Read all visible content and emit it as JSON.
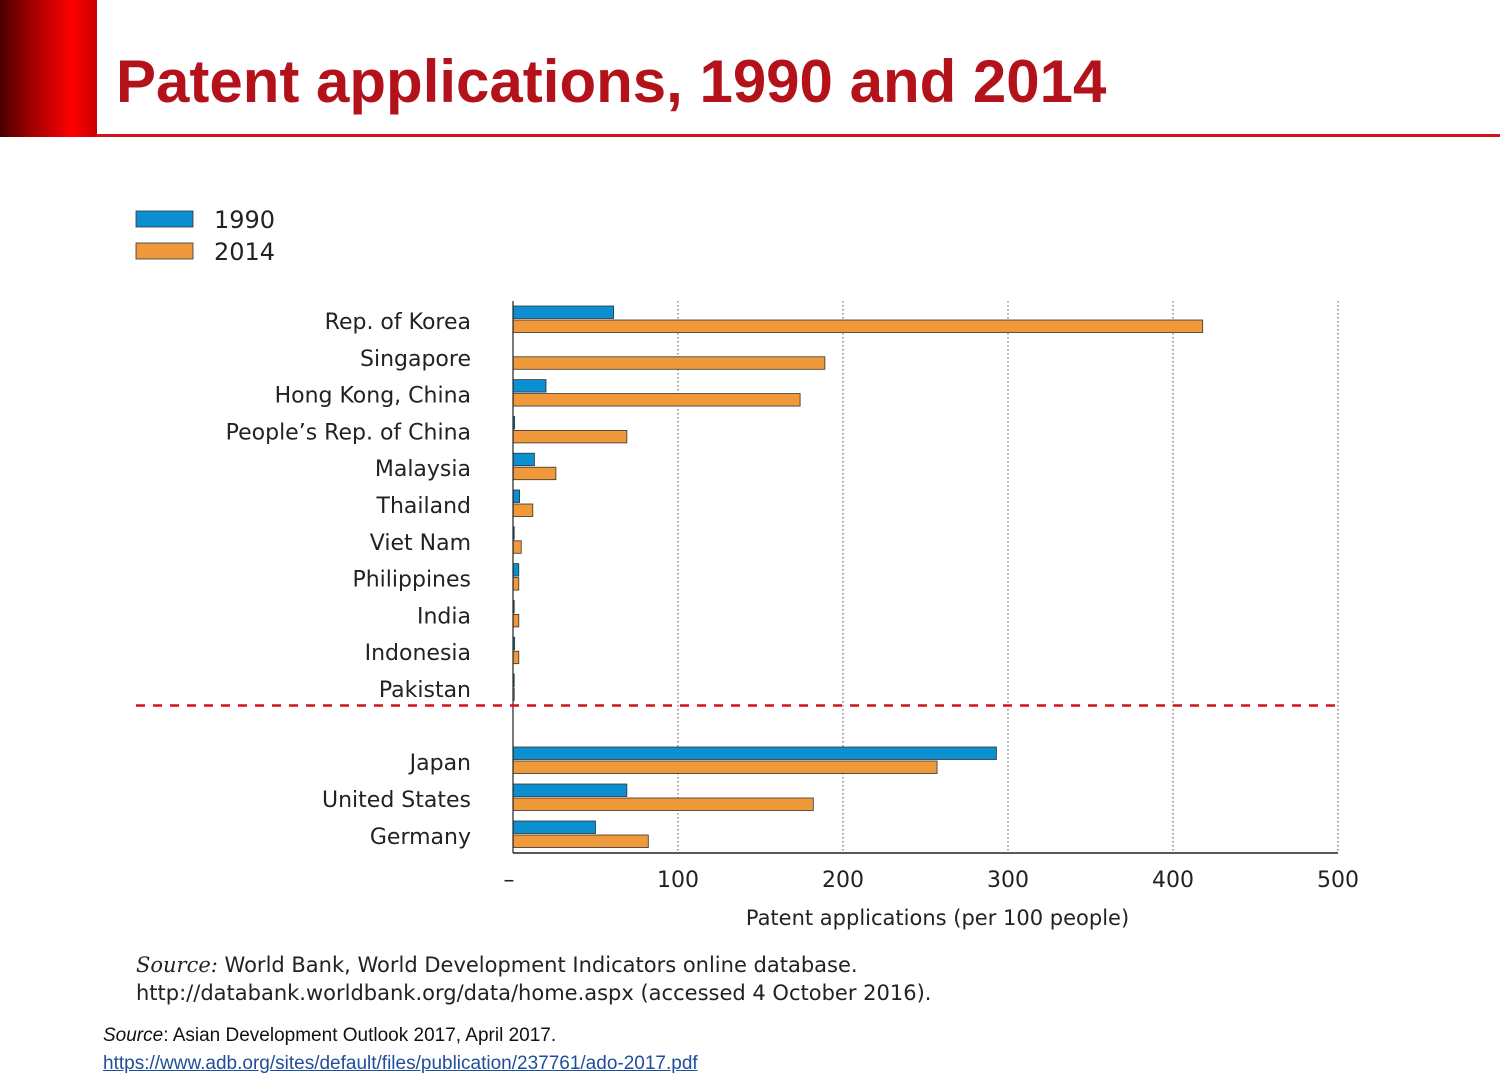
{
  "slide": {
    "title": "Patent applications, 1990 and 2014",
    "chart_source_label": "Source:",
    "chart_source_line1": "World Bank, World Development Indicators online database.",
    "chart_source_line2": "http://databank.worldbank.org/data/home.aspx (accessed 4 October 2016).",
    "footer_source_label": "Source",
    "footer_source_text": ": Asian Development Outlook 2017, April 2017.",
    "footer_link": "https://www.adb.org/sites/default/files/publication/237761/ado-2017.pdf"
  },
  "colors": {
    "title": "#b3121b",
    "series_1990": "#0b8fd0",
    "series_2014": "#f0993a",
    "divider": "#d0121b"
  },
  "chart_data": {
    "type": "bar",
    "orientation": "horizontal",
    "categories": [
      "Rep. of Korea",
      "Singapore",
      "Hong Kong, China",
      "People’s Rep. of China",
      "Malaysia",
      "Thailand",
      "Viet Nam",
      "Philippines",
      "India",
      "Indonesia",
      "Pakistan",
      "Japan",
      "United States",
      "Germany"
    ],
    "divider_after_index": 10,
    "series": [
      {
        "name": "1990",
        "values": [
          61,
          0,
          20,
          1,
          13,
          4,
          0.5,
          3.5,
          0.5,
          1,
          0.3,
          293,
          69,
          50
        ]
      },
      {
        "name": "2014",
        "values": [
          418,
          189,
          174,
          69,
          26,
          12,
          5,
          3.5,
          3.5,
          3.5,
          0.5,
          257,
          182,
          82
        ]
      }
    ],
    "xlabel": "Patent applications (per 100 people)",
    "xlim": [
      0,
      500
    ],
    "xticks": [
      0,
      100,
      200,
      300,
      400,
      500
    ],
    "xtick_labels": [
      "–",
      "100",
      "200",
      "300",
      "400",
      "500"
    ],
    "grid": "vertical dotted",
    "legend": "top-left"
  }
}
